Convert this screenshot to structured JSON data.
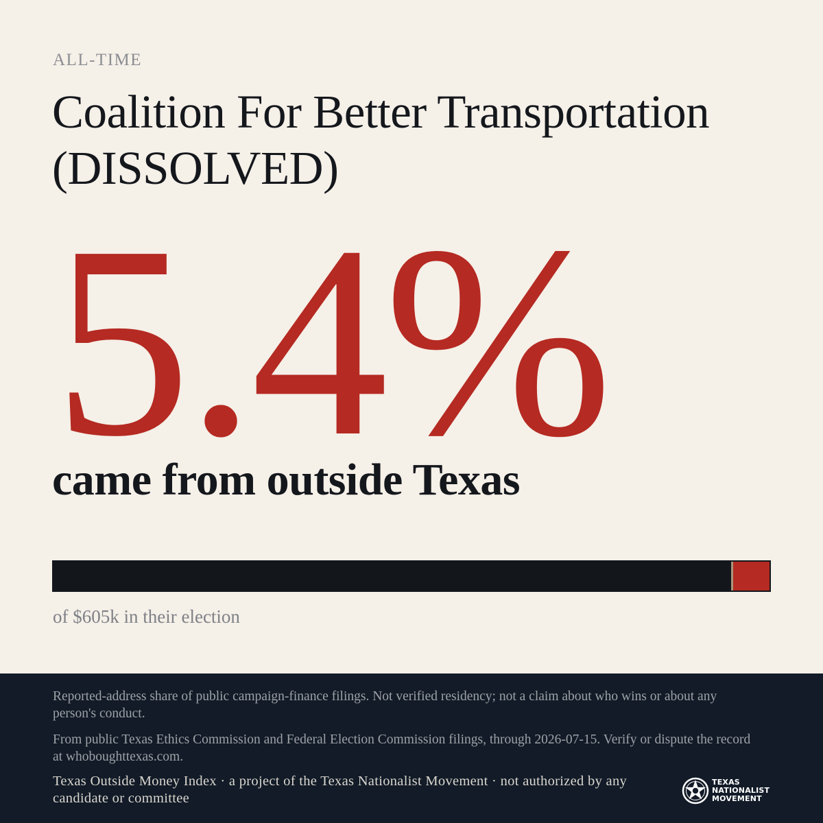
{
  "header": {
    "eyebrow": "ALL-TIME",
    "title": "Coalition For Better Transportation (DISSOLVED)"
  },
  "stat": {
    "percent_label": "5.4%",
    "percent_value": 5.4,
    "subline": "came from outside Texas"
  },
  "bar": {
    "outside_share": 0.054,
    "caption": "of $605k in their election"
  },
  "footer": {
    "note_1": "Reported-address share of public campaign-finance filings. Not verified residency; not a claim about who wins or about any person's conduct.",
    "note_2": "From public Texas Ethics Commission and Federal Election Commission filings, through 2026-07-15. Verify or dispute the record at whoboughttexas.com.",
    "credit": "Texas Outside Money Index · a project of the Texas Nationalist Movement · not authorized by any candidate or committee",
    "logo_line_1": "TEXAS",
    "logo_line_2": "NATIONALIST",
    "logo_line_3": "MOVEMENT"
  },
  "colors": {
    "background": "#f5f0e8",
    "accent_red": "#b52a22",
    "ink": "#14171c",
    "footer_bg": "#121b27"
  },
  "icons": {
    "logo": "tnm-star-seal-icon"
  }
}
